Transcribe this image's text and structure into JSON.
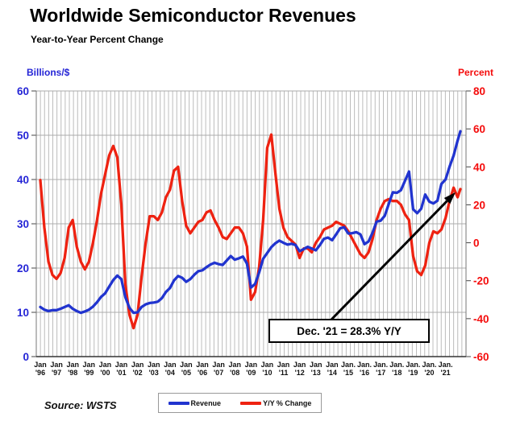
{
  "chart_data": {
    "type": "line",
    "title": "Worldwide Semiconductor Revenues",
    "subtitle": "Year-to-Year Percent Change",
    "grid": {
      "vertical_interval_months": 3,
      "horizontal_interval_left_axis": 10,
      "grid_on": true
    },
    "x_axis": {
      "start_year": 1996,
      "step_years": 0.25,
      "final_x": 2021.9167,
      "tick_month_labels": [
        "Jan",
        "Jan",
        "Jan",
        "Jan",
        "Jan",
        "Jan",
        "Jan",
        "Jan",
        "Jan",
        "Jan",
        "Jan",
        "Jan",
        "Jan",
        "Jan",
        "Jan",
        "Jan",
        "Jan",
        "Jan",
        "Jan",
        "Jan.",
        "Jan.",
        "Jan.",
        "Jan.",
        "Jan.",
        "Jan.",
        "Jan."
      ],
      "tick_year_labels": [
        "'96",
        "'97",
        "'98",
        "'99",
        "'00",
        "'01",
        "'02",
        "'03",
        "'04",
        "'05",
        "'06",
        "'07",
        "'08",
        "'09",
        "'10",
        "'11",
        "'12",
        "'13",
        "'14",
        "'15",
        "'16",
        "'17",
        "'18",
        "'19",
        "'20",
        "'21"
      ]
    },
    "y_left": {
      "label": "Billions/$",
      "min": 0,
      "max": 60,
      "ticks": [
        60,
        50,
        40,
        30,
        20,
        10,
        0
      ],
      "color": "#2525d6"
    },
    "y_right": {
      "label": "Percent",
      "min": -60,
      "max": 80,
      "ticks": [
        80,
        60,
        40,
        20,
        0,
        -20,
        -40,
        -60
      ],
      "color": "#f40c0c"
    },
    "series": [
      {
        "name": "Revenue",
        "axis": "left",
        "color": "#2134cf",
        "values": [
          11.2,
          10.6,
          10.3,
          10.5,
          10.5,
          10.8,
          11.2,
          11.6,
          10.8,
          10.3,
          9.9,
          10.2,
          10.6,
          11.3,
          12.3,
          13.5,
          14.3,
          15.8,
          17.3,
          18.3,
          17.5,
          13.4,
          11.0,
          9.9,
          10.0,
          11.2,
          11.8,
          12.1,
          12.2,
          12.4,
          13.2,
          14.6,
          15.5,
          17.2,
          18.2,
          17.8,
          16.9,
          17.5,
          18.5,
          19.3,
          19.5,
          20.2,
          20.8,
          21.2,
          20.9,
          20.7,
          21.7,
          22.7,
          21.9,
          22.2,
          22.6,
          21.0,
          15.6,
          16.4,
          19.0,
          22.1,
          23.4,
          24.7,
          25.6,
          26.2,
          25.7,
          25.3,
          25.5,
          25.2,
          23.8,
          24.3,
          24.8,
          24.4,
          24.0,
          25.2,
          26.6,
          26.9,
          26.3,
          27.6,
          29.0,
          29.2,
          27.8,
          27.9,
          28.1,
          27.6,
          25.4,
          26.0,
          28.0,
          30.5,
          30.7,
          31.8,
          34.5,
          37.1,
          37.0,
          37.6,
          39.7,
          41.8,
          33.3,
          32.4,
          33.4,
          36.6,
          35.0,
          34.6,
          35.2,
          39.0,
          40.0,
          42.9,
          45.4,
          48.8,
          50.9
        ]
      },
      {
        "name": "Y/Y % Change",
        "axis": "right",
        "color": "#ee2211",
        "values": [
          33,
          8,
          -10,
          -17,
          -19,
          -16,
          -8,
          8,
          12,
          -2,
          -10,
          -14,
          -10,
          0,
          12,
          26,
          36,
          46,
          51,
          45,
          20,
          -22,
          -38,
          -45,
          -38,
          -18,
          0,
          14,
          14,
          12,
          16,
          24,
          28,
          38,
          40,
          22,
          9,
          5,
          8,
          11,
          12,
          16,
          17,
          12,
          8,
          3,
          2,
          5,
          8,
          8,
          5,
          -2,
          -30,
          -26,
          -13,
          12,
          50,
          57,
          37,
          18,
          8,
          3,
          1,
          -1,
          -8,
          -3,
          -3,
          -5,
          0,
          3,
          7,
          8,
          9,
          11,
          10,
          9,
          6,
          2,
          -2,
          -6,
          -8,
          -5,
          2,
          12,
          18,
          22,
          23,
          22,
          22,
          20,
          15,
          12,
          -7,
          -15,
          -17,
          -12,
          0,
          6,
          5,
          7,
          13,
          22,
          29,
          24,
          28.3
        ]
      }
    ],
    "annotation": {
      "text": "Dec. '21 = 28.3% Y/Y",
      "points_to": {
        "x": 2021.9167,
        "value": 28.3
      }
    }
  },
  "legend": {
    "items": [
      {
        "label": "Revenue",
        "color": "#2134cf"
      },
      {
        "label": "Y/Y % Change",
        "color": "#ee2211"
      }
    ]
  },
  "source": {
    "text": "Source: WSTS"
  }
}
